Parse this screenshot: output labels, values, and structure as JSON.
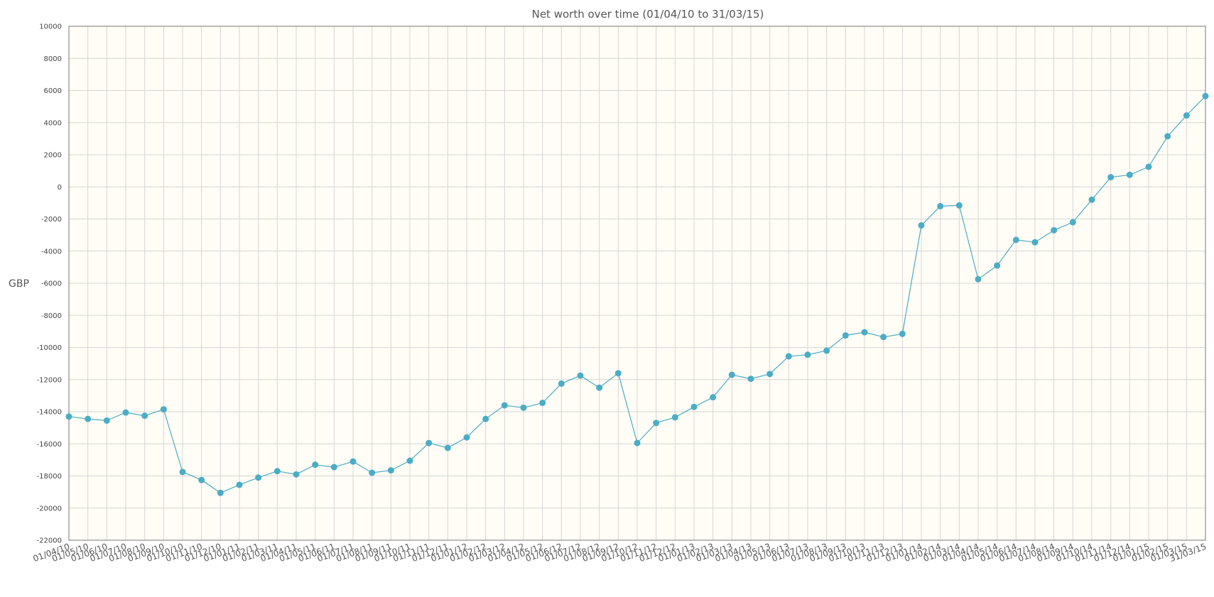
{
  "chart_data": {
    "type": "line",
    "title": "Net worth over time (01/04/10 to 31/03/15)",
    "ylabel": "GBP",
    "xlabel": "",
    "ylim": [
      -22000,
      10000
    ],
    "yticks": [
      10000,
      8000,
      6000,
      4000,
      2000,
      0,
      -2000,
      -4000,
      -6000,
      -8000,
      -10000,
      -12000,
      -14000,
      -16000,
      -18000,
      -20000,
      -22000
    ],
    "grid": true,
    "legend": "none",
    "color": "#4bacc6",
    "categories": [
      "01/04/10",
      "01/05/10",
      "01/06/10",
      "01/07/10",
      "01/08/10",
      "01/09/10",
      "01/10/10",
      "01/11/10",
      "01/12/10",
      "01/01/11",
      "01/02/11",
      "01/03/11",
      "01/04/11",
      "01/05/11",
      "01/06/11",
      "01/07/11",
      "01/08/11",
      "01/09/11",
      "01/10/11",
      "01/11/11",
      "01/12/11",
      "01/01/12",
      "01/02/12",
      "01/03/12",
      "01/04/12",
      "01/05/12",
      "01/06/12",
      "01/07/12",
      "01/08/12",
      "01/09/12",
      "01/10/12",
      "01/11/12",
      "01/12/12",
      "01/01/13",
      "01/02/13",
      "01/03/13",
      "01/04/13",
      "01/05/13",
      "01/06/13",
      "01/07/13",
      "01/08/13",
      "01/09/13",
      "01/10/13",
      "01/11/13",
      "01/12/13",
      "01/01/14",
      "01/02/14",
      "01/03/14",
      "01/04/14",
      "01/05/14",
      "01/06/14",
      "01/07/14",
      "01/08/14",
      "01/09/14",
      "01/10/14",
      "01/11/14",
      "01/12/14",
      "01/01/15",
      "01/02/15",
      "01/03/15",
      "31/03/15"
    ],
    "series": [
      {
        "values": [
          -14300,
          -14450,
          -14550,
          -14050,
          -14250,
          -13850,
          -17750,
          -18250,
          -19050,
          -18550,
          -18100,
          -17700,
          -17900,
          -17300,
          -17450,
          -17100,
          -17800,
          -17650,
          -17050,
          -15950,
          -16250,
          -15600,
          -14450,
          -13600,
          -13750,
          -13450,
          -12250,
          -11750,
          -12500,
          -11600,
          -15950,
          -14700,
          -14350,
          -13700,
          -13100,
          -11700,
          -11950,
          -11650,
          -10550,
          -10450,
          -10200,
          -9250,
          -9050,
          -9350,
          -9150,
          -2400,
          -1200,
          -1150,
          -5750,
          -4900,
          -3300,
          -3450,
          -2700,
          -2200,
          -800,
          600,
          750,
          1250,
          3150,
          4450,
          5650
        ]
      }
    ]
  }
}
